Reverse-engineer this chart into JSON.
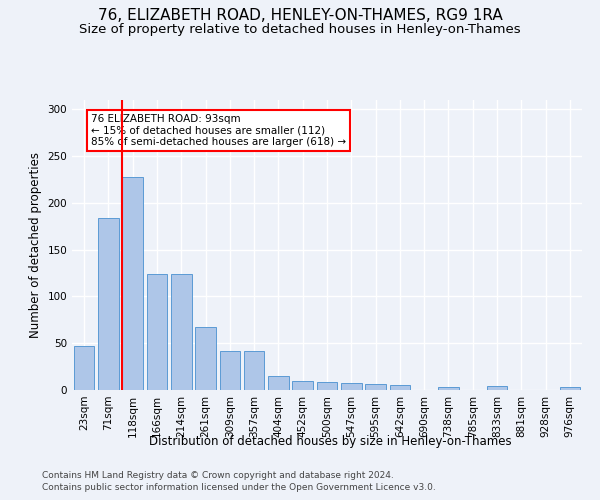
{
  "title": "76, ELIZABETH ROAD, HENLEY-ON-THAMES, RG9 1RA",
  "subtitle": "Size of property relative to detached houses in Henley-on-Thames",
  "xlabel": "Distribution of detached houses by size in Henley-on-Thames",
  "ylabel": "Number of detached properties",
  "bar_values": [
    47,
    184,
    228,
    124,
    124,
    67,
    42,
    42,
    15,
    10,
    9,
    8,
    6,
    5,
    0,
    3,
    0,
    4,
    0,
    0,
    3
  ],
  "bin_labels": [
    "23sqm",
    "71sqm",
    "118sqm",
    "166sqm",
    "214sqm",
    "261sqm",
    "309sqm",
    "357sqm",
    "404sqm",
    "452sqm",
    "500sqm",
    "547sqm",
    "595sqm",
    "642sqm",
    "690sqm",
    "738sqm",
    "785sqm",
    "833sqm",
    "881sqm",
    "928sqm",
    "976sqm"
  ],
  "bar_color": "#aec6e8",
  "bar_edgecolor": "#5b9bd5",
  "marker_color": "#ff0000",
  "annotation_text": "76 ELIZABETH ROAD: 93sqm\n← 15% of detached houses are smaller (112)\n85% of semi-detached houses are larger (618) →",
  "annotation_box_color": "#ffffff",
  "annotation_box_edgecolor": "#ff0000",
  "ylim": [
    0,
    310
  ],
  "yticks": [
    0,
    50,
    100,
    150,
    200,
    250,
    300
  ],
  "footer_line1": "Contains HM Land Registry data © Crown copyright and database right 2024.",
  "footer_line2": "Contains public sector information licensed under the Open Government Licence v3.0.",
  "background_color": "#eef2f9",
  "grid_color": "#ffffff",
  "title_fontsize": 11,
  "subtitle_fontsize": 9.5,
  "label_fontsize": 8.5,
  "tick_fontsize": 7.5,
  "footer_fontsize": 6.5
}
